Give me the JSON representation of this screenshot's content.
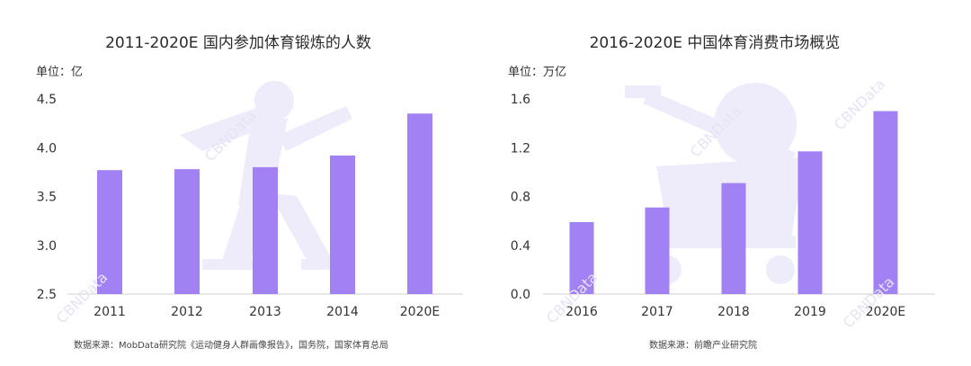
{
  "colors": {
    "bar": "#a281f5",
    "axis": "#cfcfcf",
    "watermark_shape": "#eeebfa",
    "watermark_text": "#e6e3f3"
  },
  "watermark_text": "CBNData",
  "chart_data": [
    {
      "type": "bar",
      "title": "2011-2020E 国内参加体育锻炼的人数",
      "unit_label": "单位：亿",
      "categories": [
        "2011",
        "2012",
        "2013",
        "2014",
        "2020E"
      ],
      "values": [
        3.77,
        3.78,
        3.8,
        3.92,
        4.35
      ],
      "ylim": [
        2.5,
        4.5
      ],
      "yticks": [
        "2.5",
        "3.0",
        "3.5",
        "4.0",
        "4.5"
      ],
      "ytick_values": [
        2.5,
        3.0,
        3.5,
        4.0,
        4.5
      ],
      "grid": false,
      "source": "数据来源：MobData研究院《运动健身人群画像报告》，国务院，国家体育总局"
    },
    {
      "type": "bar",
      "title": "2016-2020E 中国体育消费市场概览",
      "unit_label": "单位：万亿",
      "categories": [
        "2016",
        "2017",
        "2018",
        "2019",
        "2020E"
      ],
      "values": [
        0.59,
        0.71,
        0.91,
        1.17,
        1.5
      ],
      "ylim": [
        0.0,
        1.6
      ],
      "yticks": [
        "0.0",
        "0.4",
        "0.8",
        "1.2",
        "1.6"
      ],
      "ytick_values": [
        0.0,
        0.4,
        0.8,
        1.2,
        1.6
      ],
      "grid": false,
      "source": "数据来源：前瞻产业研究院"
    }
  ]
}
